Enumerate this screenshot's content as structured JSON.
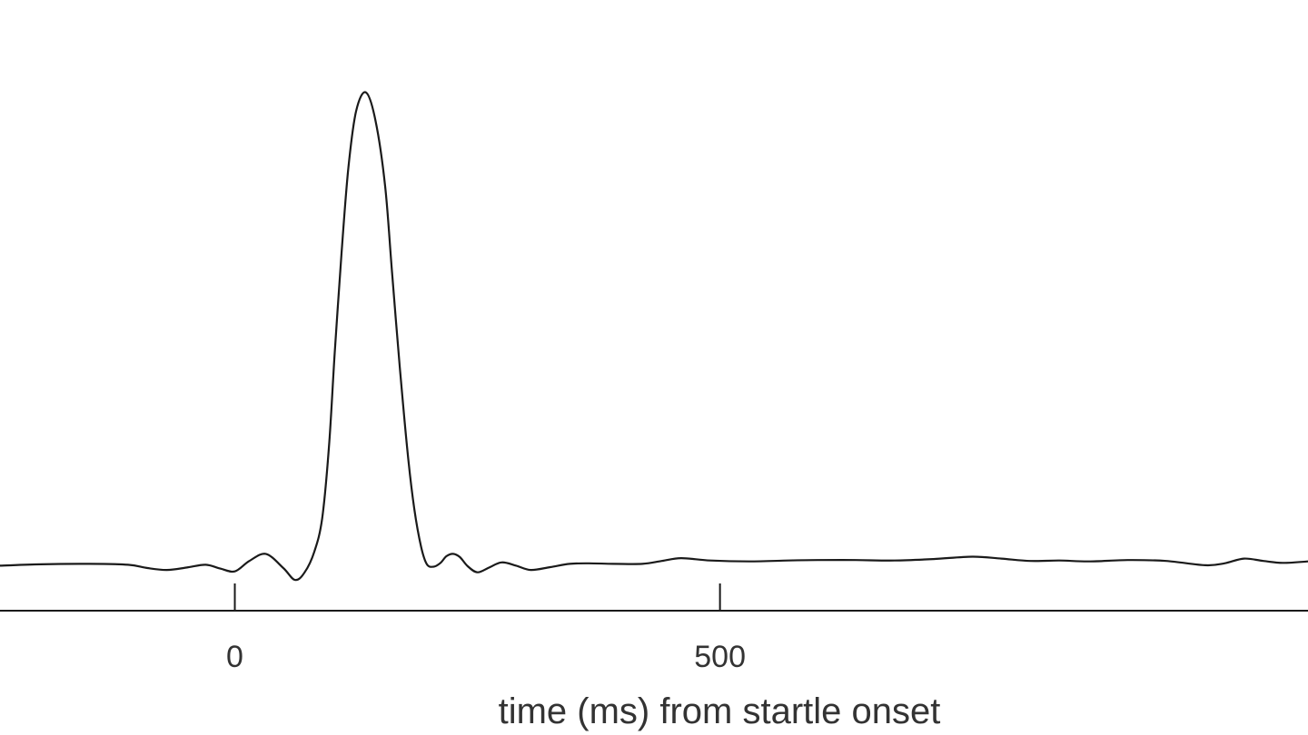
{
  "chart_data": {
    "type": "line",
    "xlabel": "time (ms) from startle onset",
    "ylabel": "",
    "title": "",
    "xlim": [
      -242,
      1106
    ],
    "ylim": [
      -0.095,
      1.08
    ],
    "grid": false,
    "legend": "none",
    "line_color": "#1a1a1a",
    "xticks": [
      {
        "value": 0,
        "label": "0"
      },
      {
        "value": 500,
        "label": "500"
      }
    ],
    "series": [
      {
        "x": [
          -242,
          -200,
          -150,
          -110,
          -90,
          -70,
          -50,
          -30,
          -15,
          0,
          15,
          32,
          50,
          62,
          72,
          82,
          90,
          97,
          103,
          110,
          117,
          125,
          135,
          145,
          155,
          162,
          170,
          178,
          185,
          192,
          198,
          205,
          212,
          218,
          225,
          232,
          240,
          250,
          262,
          275,
          290,
          305,
          325,
          345,
          365,
          390,
          420,
          440,
          460,
          490,
          530,
          570,
          600,
          640,
          680,
          720,
          760,
          790,
          820,
          850,
          880,
          920,
          960,
          1000,
          1020,
          1040,
          1060,
          1080,
          1106
        ],
        "y": [
          0.0,
          0.003,
          0.004,
          0.002,
          -0.005,
          -0.009,
          -0.004,
          0.002,
          -0.006,
          -0.012,
          0.01,
          0.025,
          -0.005,
          -0.03,
          -0.014,
          0.03,
          0.1,
          0.25,
          0.45,
          0.66,
          0.84,
          0.96,
          1.0,
          0.94,
          0.8,
          0.62,
          0.42,
          0.24,
          0.12,
          0.04,
          0.003,
          -0.002,
          0.006,
          0.02,
          0.025,
          0.018,
          -0.001,
          -0.014,
          -0.004,
          0.007,
          0.0,
          -0.009,
          -0.003,
          0.004,
          0.005,
          0.004,
          0.004,
          0.01,
          0.016,
          0.011,
          0.009,
          0.011,
          0.012,
          0.012,
          0.011,
          0.014,
          0.019,
          0.015,
          0.01,
          0.011,
          0.009,
          0.012,
          0.01,
          0.001,
          0.005,
          0.015,
          0.01,
          0.006,
          0.009
        ]
      }
    ]
  }
}
